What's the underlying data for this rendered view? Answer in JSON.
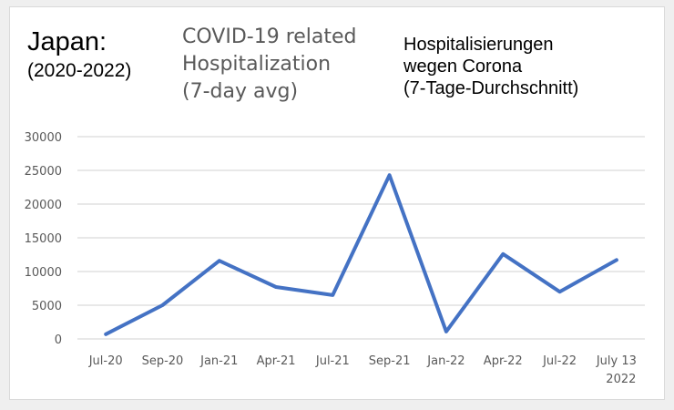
{
  "header": {
    "country": "Japan:",
    "years": "(2020-2022)",
    "title_en": "COVID-19 related\nHospitalization\n(7-day avg)",
    "title_de": "Hospitalisierungen\nwegen Corona\n(7-Tage-Durchschnitt)"
  },
  "style": {
    "line_color": "#4472c4",
    "grid_color": "#d9d9d9",
    "tick_color": "#595959",
    "background": "#efefef",
    "panel": "#ffffff"
  },
  "chart_data": {
    "type": "line",
    "title": "Japan: (2020-2022) COVID-19 related Hospitalization (7-day avg)",
    "subtitle": "Hospitalisierungen wegen Corona (7-Tage-Durchschnitt)",
    "categories": [
      "Jul-20",
      "Sep-20",
      "Jan-21",
      "Apr-21",
      "Jul-21",
      "Sep-21",
      "Jan-22",
      "Apr-22",
      "Jul-22",
      "July 13 2022"
    ],
    "series": [
      {
        "name": "Hospitalization (7-day avg)",
        "values": [
          700,
          5000,
          11600,
          7700,
          6500,
          24300,
          1100,
          12600,
          7000,
          11700
        ]
      }
    ],
    "xlabel": "",
    "ylabel": "",
    "ylim": [
      0,
      30000
    ],
    "yticks": [
      0,
      5000,
      10000,
      15000,
      20000,
      25000,
      30000
    ],
    "grid": true,
    "legend": "none"
  }
}
